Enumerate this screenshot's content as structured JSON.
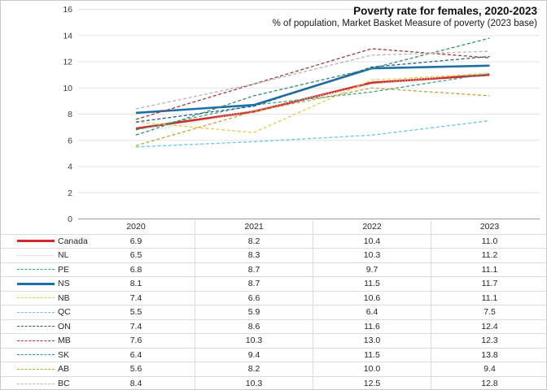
{
  "chart": {
    "title": "Poverty rate for females, 2020-2023",
    "subtitle": "% of population, Market Basket Measure of poverty (2023 base)"
  },
  "chart_data": {
    "type": "line",
    "categories": [
      "2020",
      "2021",
      "2022",
      "2023"
    ],
    "series": [
      {
        "name": "Canada",
        "values": [
          6.9,
          8.2,
          10.4,
          11.0
        ],
        "color": "#d02b27",
        "style": "solid",
        "width": 2.6
      },
      {
        "name": "NL",
        "values": [
          6.5,
          8.3,
          10.3,
          11.2
        ],
        "color": "#ccd8c8",
        "style": "dotted",
        "width": 1.3
      },
      {
        "name": "PE",
        "values": [
          6.8,
          8.7,
          9.7,
          11.1
        ],
        "color": "#3aa189",
        "style": "dashed",
        "width": 1.3
      },
      {
        "name": "NS",
        "values": [
          8.1,
          8.7,
          11.5,
          11.7
        ],
        "color": "#1c6fa8",
        "style": "solid",
        "width": 2.6
      },
      {
        "name": "NB",
        "values": [
          7.4,
          6.6,
          10.6,
          11.1
        ],
        "color": "#e9c84f",
        "style": "dashed",
        "width": 1.3
      },
      {
        "name": "QC",
        "values": [
          5.5,
          5.9,
          6.4,
          7.5
        ],
        "color": "#64c5e8",
        "style": "dashed",
        "width": 1.3
      },
      {
        "name": "ON",
        "values": [
          7.4,
          8.6,
          11.6,
          12.4
        ],
        "color": "#2a5c84",
        "style": "dashed",
        "width": 1.3
      },
      {
        "name": "MB",
        "values": [
          7.6,
          10.3,
          13.0,
          12.3
        ],
        "color": "#a23a34",
        "style": "dashed",
        "width": 1.3
      },
      {
        "name": "SK",
        "values": [
          6.4,
          9.4,
          11.5,
          13.8
        ],
        "color": "#2e9169",
        "style": "dashed",
        "width": 1.3
      },
      {
        "name": "AB",
        "values": [
          5.6,
          8.2,
          10.0,
          9.4
        ],
        "color": "#c2a33b",
        "style": "dashed",
        "width": 1.3
      },
      {
        "name": "BC",
        "values": [
          8.4,
          10.3,
          12.5,
          12.8
        ],
        "color": "#b5b5b5",
        "style": "dashed",
        "width": 1.3
      }
    ],
    "title": "Poverty rate for females, 2020-2023",
    "subtitle": "% of population, Market Basket Measure of poverty (2023 base)",
    "xlabel": "",
    "ylabel": "",
    "ylim": [
      0,
      16
    ],
    "ytick_step": 2,
    "grid": true,
    "legend_position": "table-left",
    "colors": {
      "gridline": "#e3e3e3",
      "axis_line": "#9a9a9a",
      "tick_label": "#3c3c3c",
      "table_border": "#dcdcdc"
    }
  }
}
